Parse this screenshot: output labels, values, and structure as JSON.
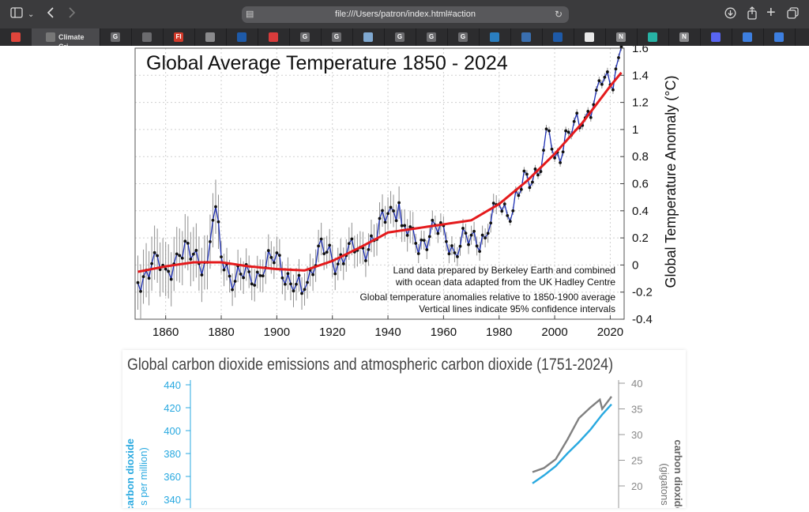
{
  "browser": {
    "address": "file:///Users/patron/index.html#action",
    "active_tab_label": "Climate Cri...",
    "tab_icons": [
      {
        "name": "app-icon",
        "letter": "",
        "color": "#e0453b"
      },
      {
        "name": "g-icon",
        "letter": "G",
        "color": "#6b6b6e"
      },
      {
        "name": "compass-icon",
        "letter": "",
        "color": "#6b6b6e"
      },
      {
        "name": "fi-icon",
        "letter": "FI",
        "color": "#d23a2a"
      },
      {
        "name": "gear-icon",
        "letter": "",
        "color": "#8a8a8c"
      },
      {
        "name": "noaa-icon",
        "letter": "",
        "color": "#1e5aa8"
      },
      {
        "name": "document-icon",
        "letter": "",
        "color": "#d93b3b"
      },
      {
        "name": "g-icon",
        "letter": "G",
        "color": "#6b6b6e"
      },
      {
        "name": "g-icon",
        "letter": "G",
        "color": "#6b6b6e"
      },
      {
        "name": "image-icon",
        "letter": "",
        "color": "#7fa8d0"
      },
      {
        "name": "g-icon",
        "letter": "G",
        "color": "#6b6b6e"
      },
      {
        "name": "g-icon",
        "letter": "G",
        "color": "#6b6b6e"
      },
      {
        "name": "g-icon",
        "letter": "G",
        "color": "#6b6b6e"
      },
      {
        "name": "share-icon",
        "letter": "",
        "color": "#2a7ec0"
      },
      {
        "name": "site-icon",
        "letter": "",
        "color": "#3a6fb0"
      },
      {
        "name": "noaa-icon",
        "letter": "",
        "color": "#1e5aa8"
      },
      {
        "name": "github-icon",
        "letter": "",
        "color": "#e8e8e8"
      },
      {
        "name": "n-icon",
        "letter": "N",
        "color": "#8a8a8c"
      },
      {
        "name": "diamond-icon",
        "letter": "",
        "color": "#27b3a5"
      },
      {
        "name": "n-icon",
        "letter": "N",
        "color": "#8a8a8c"
      },
      {
        "name": "discord-icon",
        "letter": "",
        "color": "#5865f2"
      },
      {
        "name": "calendar-icon",
        "letter": "",
        "color": "#3d7fe0"
      },
      {
        "name": "calendar-icon",
        "letter": "",
        "color": "#3d7fe0"
      }
    ]
  },
  "chart_data": [
    {
      "type": "line",
      "title": "Global Average Temperature 1850 - 2024",
      "ylabel": "Global Temperature Anomaly (°C)",
      "xlim": [
        1849,
        2025
      ],
      "ylim": [
        -0.4,
        1.6
      ],
      "x_ticks": [
        "1860",
        "1880",
        "1900",
        "1920",
        "1940",
        "1960",
        "1980",
        "2000",
        "2020"
      ],
      "y_ticks": [
        "1.6",
        "1.4",
        "1.2",
        "1",
        "0.8",
        "0.6",
        "0.4",
        "0.2",
        "0",
        "-0.2",
        "-0.4"
      ],
      "grid": true,
      "annotations": [
        "Land data prepared by Berkeley Earth and combined",
        "with ocean data adapted from the UK Hadley Centre",
        "Global temperature anomalies relative to 1850-1900 average",
        "Vertical lines indicate 95% confidence intervals"
      ],
      "series": [
        {
          "color": "#1d2fb5",
          "x": [
            1850,
            1855,
            1860,
            1865,
            1870,
            1875,
            1877,
            1878,
            1880,
            1885,
            1890,
            1895,
            1900,
            1905,
            1909,
            1910,
            1915,
            1920,
            1925,
            1930,
            1935,
            1940,
            1944,
            1945,
            1950,
            1955,
            1960,
            1964,
            1970,
            1975,
            1980,
            1985,
            1990,
            1995,
            1998,
            2000,
            2005,
            2010,
            2015,
            2016,
            2020,
            2023,
            2024
          ],
          "y": [
            -0.13,
            0.01,
            -0.03,
            0.07,
            0.08,
            0.02,
            0.33,
            0.43,
            0.06,
            -0.12,
            -0.05,
            -0.08,
            0.09,
            -0.14,
            -0.21,
            -0.18,
            0.14,
            0.03,
            0.07,
            0.13,
            0.18,
            0.38,
            0.46,
            0.29,
            0.16,
            0.21,
            0.29,
            0.09,
            0.22,
            0.2,
            0.45,
            0.4,
            0.67,
            0.69,
            0.99,
            0.79,
            0.98,
            1.03,
            1.29,
            1.36,
            1.33,
            1.53,
            1.61
          ]
        },
        {
          "color": "#e41a1c",
          "x": [
            1850,
            1860,
            1870,
            1880,
            1890,
            1900,
            1910,
            1920,
            1930,
            1940,
            1950,
            1960,
            1970,
            1980,
            1990,
            2000,
            2010,
            2020,
            2024
          ],
          "y": [
            -0.05,
            -0.01,
            0.02,
            0.02,
            -0.01,
            -0.03,
            -0.04,
            0.03,
            0.13,
            0.24,
            0.27,
            0.3,
            0.33,
            0.45,
            0.62,
            0.82,
            1.05,
            1.32,
            1.42
          ]
        }
      ]
    },
    {
      "type": "line",
      "title": "Global carbon dioxide emissions and atmospheric carbon dioxide (1751-2024)",
      "ylabel_left": "ric carbon dioxide",
      "ylabel_left_sub": "s per million)",
      "ylabel_right": "carbon dioxide e",
      "ylabel_right_sub": "(gigatons",
      "left_ticks": [
        "440",
        "420",
        "400",
        "380",
        "360",
        "340"
      ],
      "right_ticks": [
        "40",
        "35",
        "30",
        "25",
        "20"
      ],
      "left_color": "#29a9e0",
      "right_color": "#808080",
      "series": [
        {
          "color": "#808080",
          "x": [
            1990,
            1995,
            2000,
            2005,
            2010,
            2015,
            2019,
            2020,
            2024
          ],
          "y": [
            22.7,
            23.5,
            25.2,
            29.0,
            33.2,
            35.3,
            36.8,
            35.0,
            37.4
          ]
        },
        {
          "color": "#29a9e0",
          "x": [
            1990,
            1995,
            2000,
            2005,
            2010,
            2015,
            2020,
            2024
          ],
          "y": [
            354,
            361,
            369,
            380,
            390,
            401,
            414,
            423
          ]
        }
      ]
    }
  ]
}
